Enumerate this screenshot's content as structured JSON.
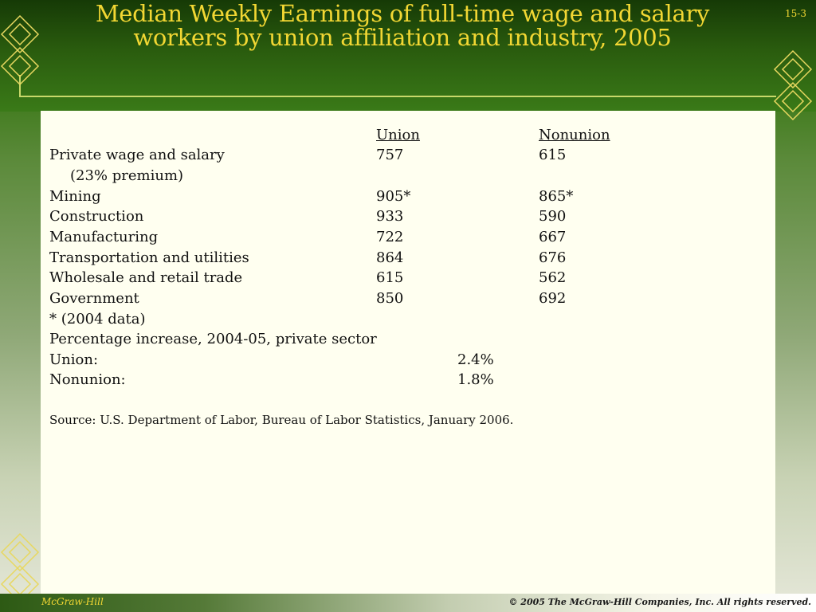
{
  "slide": {
    "title": "Median Weekly Earnings of full-time wage and salary workers by union affiliation and industry, 2005",
    "number": "15-3"
  },
  "table": {
    "headers": {
      "union": "Union",
      "nonunion": "Nonunion"
    },
    "rows": [
      {
        "label": "Private wage and salary",
        "union": "757",
        "nonunion": "615"
      },
      {
        "label": "(23% premium)",
        "union": "",
        "nonunion": ""
      },
      {
        "label": "Mining",
        "union": "905*",
        "nonunion": "865*"
      },
      {
        "label": "Construction",
        "union": "933",
        "nonunion": "590"
      },
      {
        "label": "Manufacturing",
        "union": "722",
        "nonunion": "667"
      },
      {
        "label": "Transportation and utilities",
        "union": "864",
        "nonunion": "676"
      },
      {
        "label": "Wholesale and retail trade",
        "union": "615",
        "nonunion": "562"
      },
      {
        "label": "Government",
        "union": "850",
        "nonunion": "692"
      }
    ],
    "footnote": "* (2004 data)"
  },
  "percentage": {
    "heading": "Percentage increase, 2004-05, private sector",
    "union_label": "Union:",
    "union_value": "2.4%",
    "nonunion_label": "Nonunion:",
    "nonunion_value": "1.8%"
  },
  "source": "Source: U.S. Department of Labor, Bureau of Labor Statistics, January 2006.",
  "footer": {
    "publisher": "McGraw-Hill",
    "copyright": "© 2005 The McGraw-Hill Companies, Inc. All rights reserved."
  },
  "colors": {
    "title": "#f2d733",
    "header_dark": "#163a06",
    "content_bg": "#fffff0",
    "accent_line": "#c8d86a"
  },
  "icons": [
    "diamond-ornament-icon"
  ]
}
